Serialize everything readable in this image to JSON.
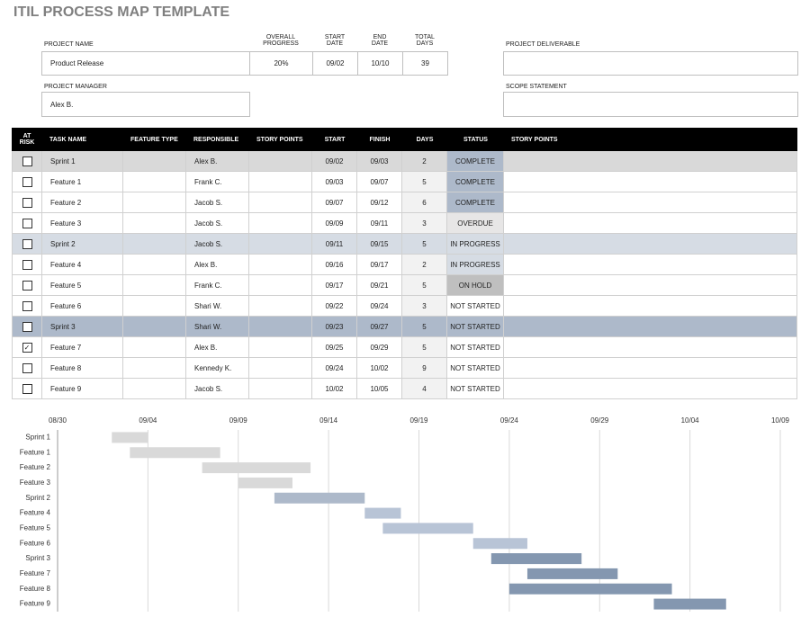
{
  "title": "ITIL PROCESS MAP TEMPLATE",
  "project": {
    "name_label": "PROJECT NAME",
    "name": "Product Release",
    "progress_label": "OVERALL PROGRESS",
    "progress": "20%",
    "start_label": "START DATE",
    "start": "09/02",
    "end_label": "END DATE",
    "end": "10/10",
    "total_days_label": "TOTAL DAYS",
    "total_days": 39,
    "deliverable_label": "PROJECT DELIVERABLE",
    "manager_label": "PROJECT MANAGER",
    "manager": "Alex B.",
    "scope_label": "SCOPE STATEMENT"
  },
  "table": {
    "headers": [
      "AT RISK",
      "TASK NAME",
      "FEATURE TYPE",
      "RESPONSIBLE",
      "STORY POINTS",
      "START",
      "FINISH",
      "DAYS",
      "STATUS",
      "STORY POINTS"
    ],
    "rows": [
      {
        "at_risk": false,
        "task": "Sprint 1",
        "responsible": "Alex B.",
        "start": "09/02",
        "finish": "09/03",
        "days": 2,
        "status": "COMPLETE",
        "fill": "#d9d9d9",
        "status_fill": "#adb9ca"
      },
      {
        "at_risk": false,
        "task": "Feature 1",
        "responsible": "Frank C.",
        "start": "09/03",
        "finish": "09/07",
        "days": 5,
        "status": "COMPLETE",
        "fill": "#ffffff",
        "status_fill": "#adb9ca"
      },
      {
        "at_risk": false,
        "task": "Feature 2",
        "responsible": "Jacob S.",
        "start": "09/07",
        "finish": "09/12",
        "days": 6,
        "status": "COMPLETE",
        "fill": "#ffffff",
        "status_fill": "#adb9ca"
      },
      {
        "at_risk": false,
        "task": "Feature 3",
        "responsible": "Jacob S.",
        "start": "09/09",
        "finish": "09/11",
        "days": 3,
        "status": "OVERDUE",
        "fill": "#ffffff",
        "status_fill": "#e7e6e6"
      },
      {
        "at_risk": false,
        "task": "Sprint 2",
        "responsible": "Jacob S.",
        "start": "09/11",
        "finish": "09/15",
        "days": 5,
        "status": "IN PROGRESS",
        "fill": "#d6dce4",
        "status_fill": "#d6dce4"
      },
      {
        "at_risk": false,
        "task": "Feature 4",
        "responsible": "Alex B.",
        "start": "09/16",
        "finish": "09/17",
        "days": 2,
        "status": "IN PROGRESS",
        "fill": "#ffffff",
        "status_fill": "#d6dce4"
      },
      {
        "at_risk": false,
        "task": "Feature 5",
        "responsible": "Frank C.",
        "start": "09/17",
        "finish": "09/21",
        "days": 5,
        "status": "ON HOLD",
        "fill": "#ffffff",
        "status_fill": "#bfbfbf"
      },
      {
        "at_risk": false,
        "task": "Feature 6",
        "responsible": "Shari W.",
        "start": "09/22",
        "finish": "09/24",
        "days": 3,
        "status": "NOT STARTED",
        "fill": "#ffffff",
        "status_fill": "#ffffff"
      },
      {
        "at_risk": false,
        "task": "Sprint 3",
        "responsible": "Shari W.",
        "start": "09/23",
        "finish": "09/27",
        "days": 5,
        "status": "NOT STARTED",
        "fill": "#adb9ca",
        "status_fill": "#adb9ca"
      },
      {
        "at_risk": true,
        "task": "Feature 7",
        "responsible": "Alex B.",
        "start": "09/25",
        "finish": "09/29",
        "days": 5,
        "status": "NOT STARTED",
        "fill": "#ffffff",
        "status_fill": "#ffffff"
      },
      {
        "at_risk": false,
        "task": "Feature 8",
        "responsible": "Kennedy K.",
        "start": "09/24",
        "finish": "10/02",
        "days": 9,
        "status": "NOT STARTED",
        "fill": "#ffffff",
        "status_fill": "#ffffff"
      },
      {
        "at_risk": false,
        "task": "Feature 9",
        "responsible": "Jacob S.",
        "start": "10/02",
        "finish": "10/05",
        "days": 4,
        "status": "NOT STARTED",
        "fill": "#ffffff",
        "status_fill": "#ffffff"
      }
    ]
  },
  "chart_data": {
    "type": "gantt",
    "categories": [
      "Sprint 1",
      "Feature 1",
      "Feature 2",
      "Feature 3",
      "Sprint 2",
      "Feature 4",
      "Feature 5",
      "Feature 6",
      "Sprint 3",
      "Feature 7",
      "Feature 8",
      "Feature 9"
    ],
    "start": [
      "09/02",
      "09/03",
      "09/07",
      "09/09",
      "09/11",
      "09/16",
      "09/17",
      "09/22",
      "09/23",
      "09/25",
      "09/24",
      "10/02"
    ],
    "days": [
      2,
      5,
      6,
      3,
      5,
      2,
      5,
      3,
      5,
      5,
      9,
      4
    ],
    "colors": [
      "#d9d9d9",
      "#d9d9d9",
      "#d9d9d9",
      "#d9d9d9",
      "#adb9ca",
      "#b8c4d6",
      "#b8c4d6",
      "#b8c4d6",
      "#8497b0",
      "#8497b0",
      "#8497b0",
      "#8497b0"
    ],
    "xlim": [
      "08/30",
      "10/09"
    ],
    "xticks": [
      "08/30",
      "09/04",
      "09/09",
      "09/14",
      "09/19",
      "09/24",
      "09/29",
      "10/04",
      "10/09"
    ],
    "grid": true
  }
}
